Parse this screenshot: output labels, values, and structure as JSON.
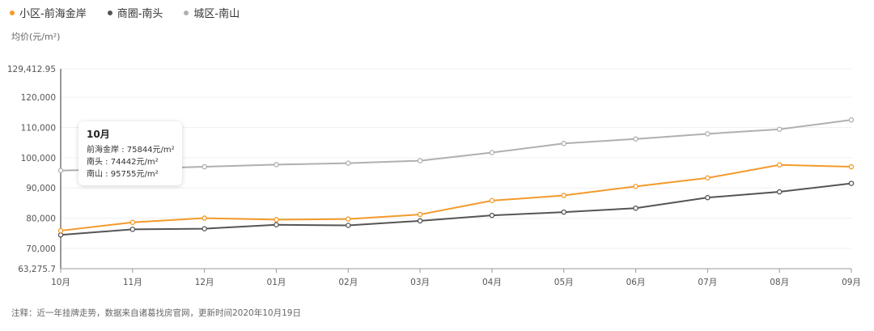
{
  "legend": [
    {
      "label": "小区-前海金岸",
      "color": "#f39a2b"
    },
    {
      "label": "商圈-南头",
      "color": "#555555"
    },
    {
      "label": "城区-南山",
      "color": "#b0b0b0"
    }
  ],
  "unit_label": "均价(元/m²)",
  "footnote": "注释：近一年挂牌走势，数据来自诸葛找房官网，更新时间2020年10月19日",
  "tooltip": {
    "title": "10月",
    "rows": [
      "前海金岸 : 75844元/m²",
      "南头 : 74442元/m²",
      "南山 : 95755元/m²"
    ]
  },
  "chart_data": {
    "type": "line",
    "ylabel": "均价(元/m²)",
    "categories": [
      "10月",
      "11月",
      "12月",
      "01月",
      "02月",
      "03月",
      "04月",
      "05月",
      "06月",
      "07月",
      "08月",
      "09月"
    ],
    "ylim": [
      63275.7,
      129412.95
    ],
    "yticks": [
      63275.7,
      70000,
      80000,
      90000,
      100000,
      110000,
      120000,
      129412.95
    ],
    "ytick_labels": [
      "63,275.7",
      "70,000",
      "80,000",
      "90,000",
      "100,000",
      "110,000",
      "120,000",
      "129,412.95"
    ],
    "grid": true,
    "legend_position": "top-left",
    "series": [
      {
        "name": "小区-前海金岸",
        "color": "#f39a2b",
        "values": [
          75844,
          78600,
          80000,
          79500,
          79700,
          81200,
          85800,
          87500,
          90500,
          93300,
          97600,
          97000
        ]
      },
      {
        "name": "商圈-南头",
        "color": "#555555",
        "values": [
          74442,
          76300,
          76500,
          77800,
          77600,
          79100,
          80900,
          82000,
          83300,
          86800,
          88700,
          91500
        ]
      },
      {
        "name": "城区-南山",
        "color": "#b0b0b0",
        "values": [
          95755,
          96300,
          97000,
          97700,
          98200,
          99000,
          101700,
          104700,
          106200,
          107900,
          109400,
          112500
        ]
      }
    ]
  }
}
